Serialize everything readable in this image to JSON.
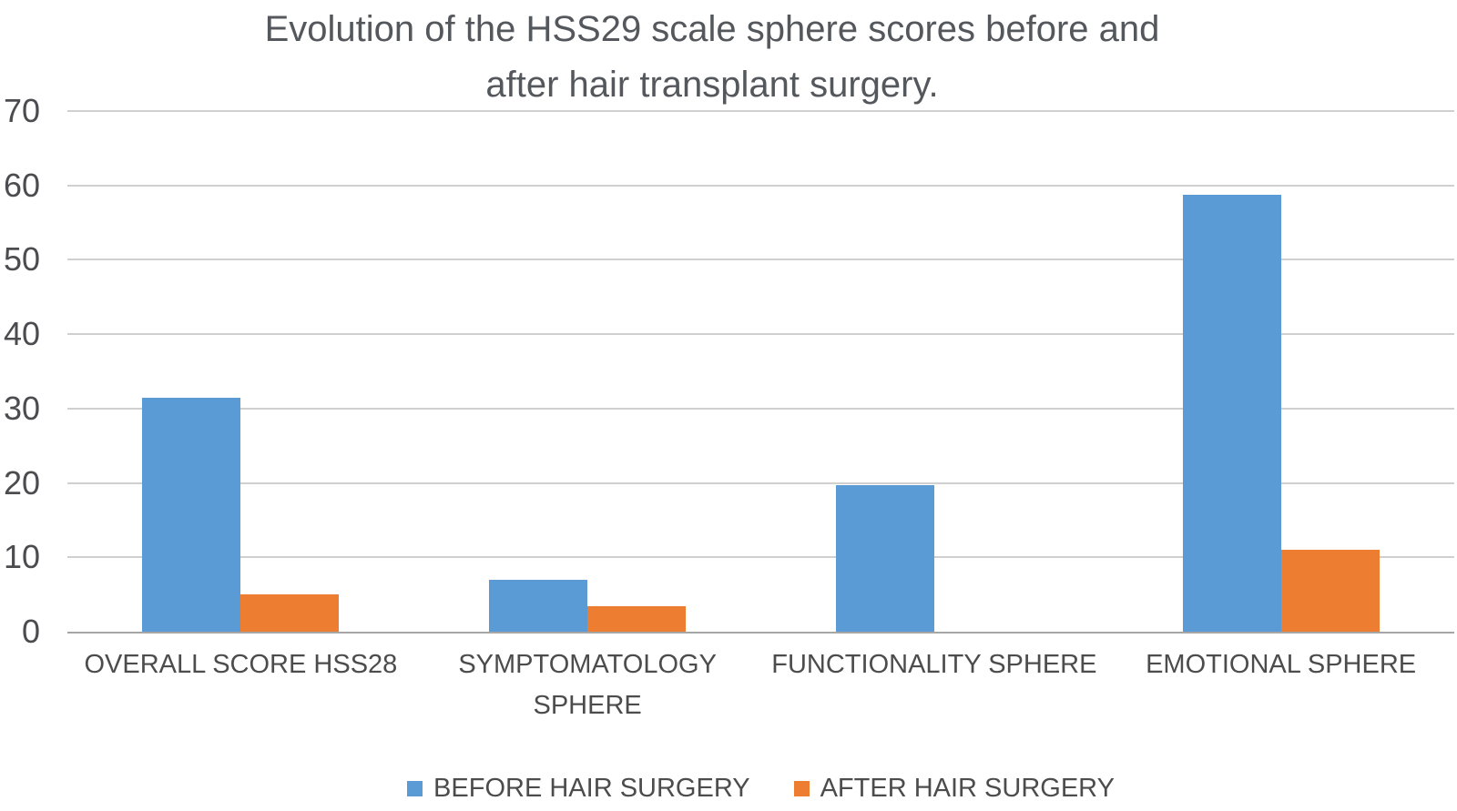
{
  "chart_data": {
    "type": "bar",
    "title": "Evolution of the HSS29 scale sphere scores before and\nafter hair transplant surgery.",
    "categories": [
      "OVERALL SCORE HSS28",
      "SYMPTOMATOLOGY\nSPHERE",
      "FUNCTIONALITY SPHERE",
      "EMOTIONAL SPHERE"
    ],
    "series": [
      {
        "name": "BEFORE HAIR SURGERY",
        "color": "#5B9BD5",
        "values": [
          31.4,
          7.0,
          19.7,
          58.7
        ]
      },
      {
        "name": "AFTER HAIR SURGERY",
        "color": "#ED7D31",
        "values": [
          5.0,
          3.4,
          0,
          11.0
        ]
      }
    ],
    "xlabel": "",
    "ylabel": "",
    "ylim": [
      0,
      70
    ],
    "ytick_step": 10,
    "ytick_labels": [
      "0",
      "10",
      "20",
      "30",
      "40",
      "50",
      "60",
      "70"
    ],
    "grid": true,
    "legend_position": "bottom"
  },
  "colors": {
    "title_text": "#54585c",
    "axis_text": "#4c4c4c",
    "gridline": "#d0d0d0",
    "axis_line": "#a6a6a6",
    "background": "#ffffff"
  }
}
